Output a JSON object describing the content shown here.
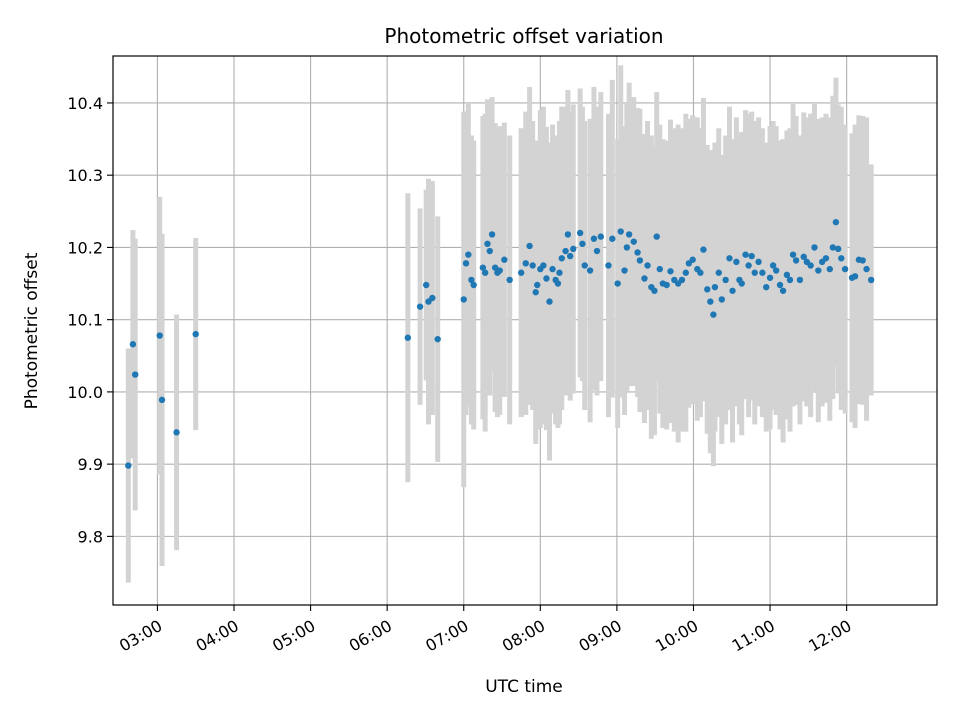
{
  "chart_data": {
    "type": "scatter",
    "title": "Photometric offset variation",
    "xlabel": "UTC time",
    "ylabel": "Photometric offset",
    "x_unit": "hours UTC",
    "xlim": [
      2.42,
      13.18
    ],
    "ylim": [
      9.705,
      10.465
    ],
    "x_ticks": [
      3,
      4,
      5,
      6,
      7,
      8,
      9,
      10,
      11,
      12
    ],
    "x_tick_labels": [
      "03:00",
      "04:00",
      "05:00",
      "06:00",
      "07:00",
      "08:00",
      "09:00",
      "10:00",
      "11:00",
      "12:00"
    ],
    "y_ticks": [
      9.8,
      9.9,
      10.0,
      10.1,
      10.2,
      10.3,
      10.4
    ],
    "y_tick_labels": [
      "9.8",
      "9.9",
      "10.0",
      "10.1",
      "10.2",
      "10.3",
      "10.4"
    ],
    "grid": true,
    "colors": {
      "points": "#1f77b4",
      "error_bars": "#d3d3d3",
      "grid": "#b0b0b0"
    },
    "points": [
      [
        2.62,
        9.898,
        0.162
      ],
      [
        2.68,
        10.066,
        0.158
      ],
      [
        2.71,
        10.024,
        0.188
      ],
      [
        3.03,
        10.078,
        0.192
      ],
      [
        3.06,
        9.989,
        0.23
      ],
      [
        3.25,
        9.944,
        0.163
      ],
      [
        3.5,
        10.08,
        0.133
      ],
      [
        6.27,
        10.075,
        0.2
      ],
      [
        6.43,
        10.118,
        0.136
      ],
      [
        6.51,
        10.148,
        0.132
      ],
      [
        6.54,
        10.125,
        0.17
      ],
      [
        6.59,
        10.13,
        0.162
      ],
      [
        6.66,
        10.073,
        0.17
      ],
      [
        7.0,
        10.128,
        0.26
      ],
      [
        7.03,
        10.178,
        0.21
      ],
      [
        7.06,
        10.19,
        0.21
      ],
      [
        7.1,
        10.155,
        0.2
      ],
      [
        7.13,
        10.148,
        0.2
      ],
      [
        7.25,
        10.172,
        0.21
      ],
      [
        7.28,
        10.165,
        0.22
      ],
      [
        7.31,
        10.205,
        0.2
      ],
      [
        7.34,
        10.195,
        0.2
      ],
      [
        7.37,
        10.218,
        0.19
      ],
      [
        7.41,
        10.172,
        0.2
      ],
      [
        7.44,
        10.165,
        0.2
      ],
      [
        7.47,
        10.168,
        0.2
      ],
      [
        7.53,
        10.183,
        0.19
      ],
      [
        7.6,
        10.155,
        0.2
      ],
      [
        7.75,
        10.165,
        0.2
      ],
      [
        7.81,
        10.178,
        0.21
      ],
      [
        7.86,
        10.202,
        0.22
      ],
      [
        7.9,
        10.175,
        0.2
      ],
      [
        7.94,
        10.138,
        0.21
      ],
      [
        7.96,
        10.148,
        0.2
      ],
      [
        8.0,
        10.17,
        0.22
      ],
      [
        8.04,
        10.175,
        0.22
      ],
      [
        8.08,
        10.157,
        0.21
      ],
      [
        8.12,
        10.125,
        0.22
      ],
      [
        8.16,
        10.17,
        0.2
      ],
      [
        8.2,
        10.155,
        0.2
      ],
      [
        8.23,
        10.15,
        0.2
      ],
      [
        8.25,
        10.165,
        0.21
      ],
      [
        8.28,
        10.185,
        0.21
      ],
      [
        8.33,
        10.195,
        0.2
      ],
      [
        8.36,
        10.218,
        0.2
      ],
      [
        8.39,
        10.188,
        0.2
      ],
      [
        8.43,
        10.198,
        0.2
      ],
      [
        8.52,
        10.22,
        0.2
      ],
      [
        8.55,
        10.205,
        0.19
      ],
      [
        8.58,
        10.175,
        0.2
      ],
      [
        8.65,
        10.168,
        0.21
      ],
      [
        8.7,
        10.212,
        0.21
      ],
      [
        8.74,
        10.195,
        0.2
      ],
      [
        8.79,
        10.215,
        0.2
      ],
      [
        8.89,
        10.175,
        0.21
      ],
      [
        8.94,
        10.212,
        0.22
      ],
      [
        9.01,
        10.15,
        0.2
      ],
      [
        9.05,
        10.222,
        0.23
      ],
      [
        9.1,
        10.168,
        0.2
      ],
      [
        9.13,
        10.2,
        0.2
      ],
      [
        9.16,
        10.218,
        0.21
      ],
      [
        9.22,
        10.208,
        0.2
      ],
      [
        9.27,
        10.193,
        0.2
      ],
      [
        9.3,
        10.182,
        0.21
      ],
      [
        9.36,
        10.157,
        0.2
      ],
      [
        9.4,
        10.175,
        0.2
      ],
      [
        9.45,
        10.145,
        0.21
      ],
      [
        9.49,
        10.14,
        0.2
      ],
      [
        9.52,
        10.215,
        0.2
      ],
      [
        9.56,
        10.17,
        0.2
      ],
      [
        9.6,
        10.15,
        0.2
      ],
      [
        9.65,
        10.148,
        0.2
      ],
      [
        9.7,
        10.167,
        0.21
      ],
      [
        9.75,
        10.155,
        0.21
      ],
      [
        9.8,
        10.15,
        0.22
      ],
      [
        9.85,
        10.155,
        0.21
      ],
      [
        9.9,
        10.165,
        0.22
      ],
      [
        9.94,
        10.178,
        0.2
      ],
      [
        9.99,
        10.183,
        0.2
      ],
      [
        10.05,
        10.17,
        0.21
      ],
      [
        10.09,
        10.165,
        0.2
      ],
      [
        10.13,
        10.197,
        0.21
      ],
      [
        10.18,
        10.142,
        0.2
      ],
      [
        10.22,
        10.125,
        0.21
      ],
      [
        10.26,
        10.107,
        0.21
      ],
      [
        10.28,
        10.145,
        0.2
      ],
      [
        10.33,
        10.165,
        0.2
      ],
      [
        10.37,
        10.128,
        0.2
      ],
      [
        10.42,
        10.155,
        0.2
      ],
      [
        10.47,
        10.185,
        0.21
      ],
      [
        10.51,
        10.14,
        0.21
      ],
      [
        10.56,
        10.18,
        0.2
      ],
      [
        10.6,
        10.155,
        0.2
      ],
      [
        10.63,
        10.15,
        0.21
      ],
      [
        10.68,
        10.19,
        0.2
      ],
      [
        10.72,
        10.175,
        0.21
      ],
      [
        10.76,
        10.188,
        0.2
      ],
      [
        10.8,
        10.165,
        0.21
      ],
      [
        10.85,
        10.18,
        0.2
      ],
      [
        10.9,
        10.165,
        0.2
      ],
      [
        10.95,
        10.145,
        0.2
      ],
      [
        11.0,
        10.158,
        0.21
      ],
      [
        11.04,
        10.175,
        0.2
      ],
      [
        11.08,
        10.168,
        0.2
      ],
      [
        11.13,
        10.148,
        0.2
      ],
      [
        11.17,
        10.14,
        0.21
      ],
      [
        11.22,
        10.162,
        0.2
      ],
      [
        11.26,
        10.155,
        0.21
      ],
      [
        11.3,
        10.19,
        0.21
      ],
      [
        11.34,
        10.182,
        0.2
      ],
      [
        11.39,
        10.155,
        0.2
      ],
      [
        11.44,
        10.187,
        0.2
      ],
      [
        11.48,
        10.18,
        0.2
      ],
      [
        11.53,
        10.175,
        0.21
      ],
      [
        11.58,
        10.2,
        0.2
      ],
      [
        11.63,
        10.168,
        0.21
      ],
      [
        11.68,
        10.18,
        0.2
      ],
      [
        11.73,
        10.185,
        0.2
      ],
      [
        11.78,
        10.17,
        0.21
      ],
      [
        11.82,
        10.2,
        0.21
      ],
      [
        11.86,
        10.235,
        0.2
      ],
      [
        11.89,
        10.198,
        0.2
      ],
      [
        11.93,
        10.185,
        0.21
      ],
      [
        11.98,
        10.17,
        0.2
      ],
      [
        12.07,
        10.158,
        0.2
      ],
      [
        12.11,
        10.16,
        0.21
      ],
      [
        12.16,
        10.183,
        0.2
      ],
      [
        12.21,
        10.182,
        0.2
      ],
      [
        12.26,
        10.17,
        0.21
      ],
      [
        12.32,
        10.155,
        0.16
      ]
    ]
  }
}
